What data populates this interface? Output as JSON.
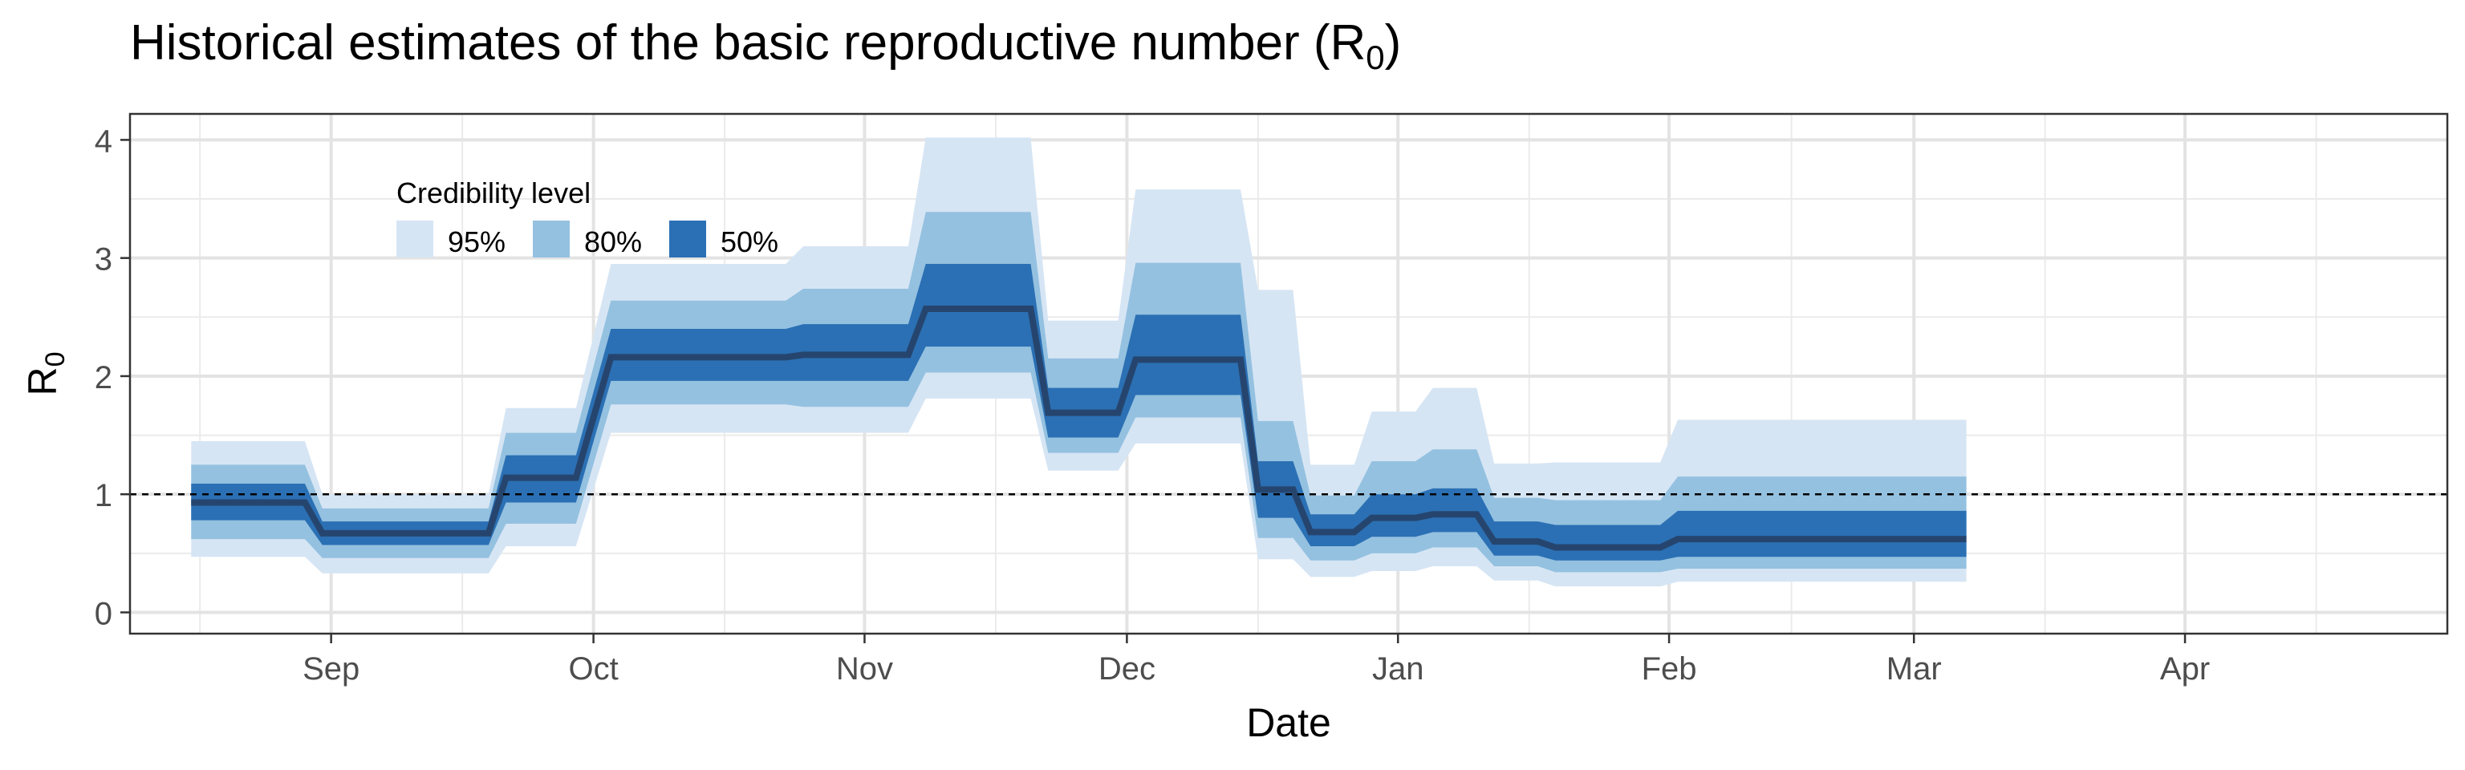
{
  "chart_data": {
    "type": "area",
    "title": "Historical estimates of the basic reproductive number (R",
    "title_sub": "0",
    "title_end": ")",
    "xlabel": "Date",
    "ylabel": "R",
    "ylabel_sub": "0",
    "x_tick_labels": [
      "Sep",
      "Oct",
      "Nov",
      "Dec",
      "Jan",
      "Feb",
      "Mar",
      "Apr"
    ],
    "x_tick_dates": [
      "2020-09-01",
      "2020-10-01",
      "2020-11-01",
      "2020-12-01",
      "2021-01-01",
      "2021-02-01",
      "2021-03-01",
      "2021-04-01"
    ],
    "xlim": [
      "2020-08-09",
      "2021-05-01"
    ],
    "y_ticks": [
      0,
      1,
      2,
      3,
      4
    ],
    "ylim": [
      -0.18,
      4.22
    ],
    "reference_line": 1,
    "grid": true,
    "legend": {
      "title": "Credibility level",
      "position": "top-left",
      "entries": [
        "95%",
        "80%",
        "50%"
      ]
    },
    "colors": {
      "band95": "#d6e5f4",
      "band80": "#94c1e0",
      "band50": "#2b70b4",
      "median": "#26456e",
      "reference": "#000000"
    },
    "segments": [
      {
        "start": "2020-08-16",
        "end": "2020-08-29",
        "median": 0.93,
        "lo95": 0.47,
        "hi95": 1.45,
        "lo80": 0.62,
        "hi80": 1.25,
        "lo50": 0.78,
        "hi50": 1.09
      },
      {
        "start": "2020-08-31",
        "end": "2020-09-19",
        "median": 0.67,
        "lo95": 0.33,
        "hi95": 1.0,
        "lo80": 0.46,
        "hi80": 0.88,
        "lo50": 0.57,
        "hi50": 0.77
      },
      {
        "start": "2020-09-21",
        "end": "2020-09-29",
        "median": 1.14,
        "lo95": 0.56,
        "hi95": 1.73,
        "lo80": 0.75,
        "hi80": 1.52,
        "lo50": 0.93,
        "hi50": 1.33
      },
      {
        "start": "2020-10-03",
        "end": "2020-10-23",
        "median": 2.16,
        "lo95": 1.52,
        "hi95": 2.95,
        "lo80": 1.76,
        "hi80": 2.64,
        "lo50": 1.96,
        "hi50": 2.4
      },
      {
        "start": "2020-10-25",
        "end": "2020-11-06",
        "median": 2.18,
        "lo95": 1.52,
        "hi95": 3.1,
        "lo80": 1.74,
        "hi80": 2.74,
        "lo50": 1.96,
        "hi50": 2.44
      },
      {
        "start": "2020-11-08",
        "end": "2020-11-20",
        "median": 2.57,
        "lo95": 1.81,
        "hi95": 4.02,
        "lo80": 2.03,
        "hi80": 3.39,
        "lo50": 2.25,
        "hi50": 2.95
      },
      {
        "start": "2020-11-22",
        "end": "2020-11-30",
        "median": 1.69,
        "lo95": 1.2,
        "hi95": 2.47,
        "lo80": 1.35,
        "hi80": 2.15,
        "lo50": 1.48,
        "hi50": 1.9
      },
      {
        "start": "2020-12-02",
        "end": "2020-12-14",
        "median": 2.14,
        "lo95": 1.43,
        "hi95": 3.58,
        "lo80": 1.65,
        "hi80": 2.96,
        "lo50": 1.84,
        "hi50": 2.52
      },
      {
        "start": "2020-12-16",
        "end": "2020-12-20",
        "median": 1.04,
        "lo95": 0.45,
        "hi95": 2.73,
        "lo80": 0.63,
        "hi80": 1.62,
        "lo50": 0.8,
        "hi50": 1.28
      },
      {
        "start": "2020-12-22",
        "end": "2020-12-27",
        "median": 0.68,
        "lo95": 0.3,
        "hi95": 1.25,
        "lo80": 0.44,
        "hi80": 0.99,
        "lo50": 0.56,
        "hi50": 0.83
      },
      {
        "start": "2020-12-29",
        "end": "2021-01-03",
        "median": 0.8,
        "lo95": 0.35,
        "hi95": 1.7,
        "lo80": 0.5,
        "hi80": 1.28,
        "lo50": 0.64,
        "hi50": 1.0
      },
      {
        "start": "2021-01-05",
        "end": "2021-01-10",
        "median": 0.83,
        "lo95": 0.39,
        "hi95": 1.9,
        "lo80": 0.55,
        "hi80": 1.38,
        "lo50": 0.68,
        "hi50": 1.05
      },
      {
        "start": "2021-01-12",
        "end": "2021-01-17",
        "median": 0.6,
        "lo95": 0.27,
        "hi95": 1.26,
        "lo80": 0.39,
        "hi80": 0.97,
        "lo50": 0.48,
        "hi50": 0.77
      },
      {
        "start": "2021-01-19",
        "end": "2021-01-31",
        "median": 0.55,
        "lo95": 0.22,
        "hi95": 1.27,
        "lo80": 0.34,
        "hi80": 0.95,
        "lo50": 0.44,
        "hi50": 0.74
      },
      {
        "start": "2021-02-02",
        "end": "2021-03-07",
        "median": 0.62,
        "lo95": 0.26,
        "hi95": 1.63,
        "lo80": 0.37,
        "hi80": 1.15,
        "lo50": 0.47,
        "hi50": 0.86
      }
    ]
  }
}
